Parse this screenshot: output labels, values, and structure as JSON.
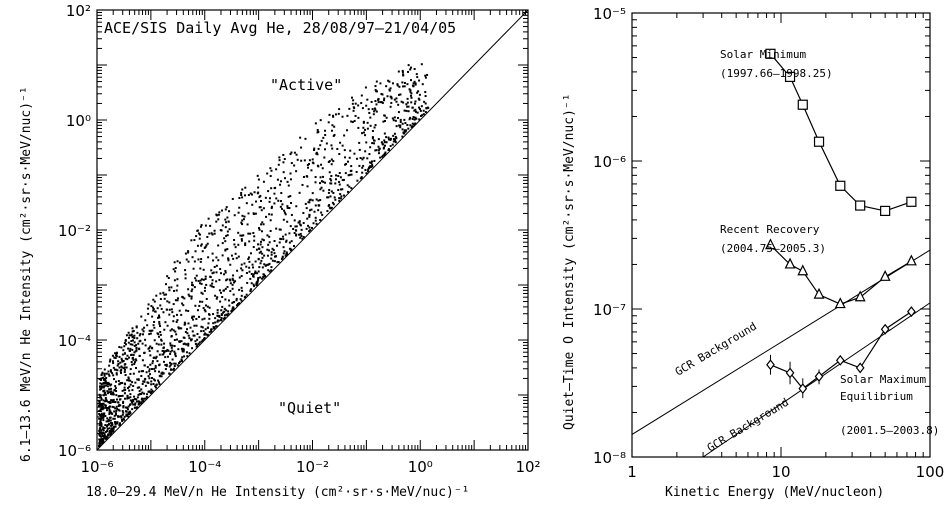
{
  "chart_data": [
    {
      "type": "scatter",
      "title": "ACE/SIS Daily Avg He, 28/08/97–21/04/05",
      "xlabel": "18.0–29.4 MeV/n He Intensity (cm²·sr·s·MeV/nuc)⁻¹",
      "ylabel": "6.1–13.6 MeV/n He Intensity (cm²·sr·s·MeV/nuc)⁻¹",
      "xscale": "log",
      "yscale": "log",
      "xlim": [
        1e-06,
        100
      ],
      "ylim": [
        1e-06,
        100
      ],
      "xticks": [
        {
          "value": 1e-06,
          "label": "10⁻⁶"
        },
        {
          "value": 0.0001,
          "label": "10⁻⁴"
        },
        {
          "value": 0.01,
          "label": "10⁻²"
        },
        {
          "value": 1,
          "label": "10⁰"
        },
        {
          "value": 100,
          "label": "10²"
        }
      ],
      "yticks": [
        {
          "value": 1e-06,
          "label": "10⁻⁶"
        },
        {
          "value": 0.0001,
          "label": "10⁻⁴"
        },
        {
          "value": 0.01,
          "label": "10⁻²"
        },
        {
          "value": 1,
          "label": "10⁰"
        },
        {
          "value": 100,
          "label": "10²"
        }
      ],
      "reference_line": "y = x",
      "annotations": [
        {
          "text": "\"Active\"",
          "x": 0.008,
          "y": 5
        },
        {
          "text": "\"Quiet\"",
          "x": 0.008,
          "y": 1.5e-05
        }
      ],
      "point_cloud": {
        "n_points": 2000,
        "upper_bound_points": [
          [
            1e-06,
            2e-05
          ],
          [
            5e-06,
            0.0002
          ],
          [
            3e-05,
            0.003
          ],
          [
            0.0001,
            0.015
          ],
          [
            0.001,
            0.1
          ],
          [
            0.01,
            0.8
          ],
          [
            0.1,
            4
          ],
          [
            0.5,
            10
          ],
          [
            1.2,
            12
          ]
        ],
        "lower_bound": "y ≈ x",
        "note": "daily averages; points lie above the y = x line"
      },
      "grid": false,
      "legend": "none"
    },
    {
      "type": "line",
      "title": "",
      "xlabel": "Kinetic Energy (MeV/nucleon)",
      "ylabel": "Quiet–Time O Intensity (cm²·sr·s·MeV/nuc)⁻¹",
      "xscale": "log",
      "yscale": "log",
      "xlim": [
        1,
        100
      ],
      "ylim": [
        1e-08,
        1e-05
      ],
      "xticks": [
        {
          "value": 1,
          "label": "1"
        },
        {
          "value": 10,
          "label": "10"
        },
        {
          "value": 100,
          "label": "100"
        }
      ],
      "yticks": [
        {
          "value": 1e-08,
          "label": "10⁻⁸"
        },
        {
          "value": 1e-07,
          "label": "10⁻⁷"
        },
        {
          "value": 1e-06,
          "label": "10⁻⁶"
        },
        {
          "value": 1e-05,
          "label": "10⁻⁵"
        }
      ],
      "series": [
        {
          "name": "Solar Minimum (1997.66–1998.25)",
          "marker": "square",
          "x": [
            8.5,
            11.5,
            14.0,
            18.0,
            25.0,
            34.0,
            50.0,
            75.0
          ],
          "y": [
            5.3e-06,
            3.7e-06,
            2.4e-06,
            1.35e-06,
            6.8e-07,
            5e-07,
            4.6e-07,
            5.3e-07
          ]
        },
        {
          "name": "Recent Recovery (2004.75–2005.3)",
          "marker": "triangle",
          "x": [
            8.5,
            11.5,
            14.0,
            18.0,
            25.0,
            34.0,
            50.0,
            75.0
          ],
          "y": [
            2.7e-07,
            2e-07,
            1.8e-07,
            1.25e-07,
            1.08e-07,
            1.2e-07,
            1.65e-07,
            2.1e-07
          ]
        },
        {
          "name": "Solar Maximum Equilibrium (2001.5–2003.8)",
          "marker": "diamond",
          "x": [
            8.5,
            11.5,
            14.0,
            18.0,
            25.0,
            34.0,
            50.0,
            75.0
          ],
          "y": [
            4.2e-08,
            3.7e-08,
            2.9e-08,
            3.5e-08,
            4.5e-08,
            4e-08,
            7.3e-08,
            9.6e-08
          ],
          "yerr_low": [
            3.6e-08,
            3.1e-08,
            2.5e-08,
            3.1e-08,
            4.2e-08,
            3.7e-08,
            7e-08,
            9.3e-08
          ],
          "yerr_high": [
            4.9e-08,
            4.4e-08,
            3.4e-08,
            3.9e-08,
            4.8e-08,
            4.3e-08,
            7.6e-08,
            9.9e-08
          ]
        }
      ],
      "reference_lines": [
        {
          "label": "GCR Background",
          "x": [
            1,
            100
          ],
          "y": [
            1.42e-08,
            2.5e-07
          ]
        },
        {
          "label": "GCR Background",
          "x": [
            3.0,
            100
          ],
          "y": [
            1e-08,
            1.1e-07
          ]
        }
      ],
      "labels": {
        "solar_min": [
          "Solar Minimum",
          "(1997.66–1998.25)"
        ],
        "recovery": [
          "Recent Recovery",
          "(2004.75–2005.3)"
        ],
        "solar_max": [
          "Solar Maximum",
          "Equilibrium",
          "(2001.5–2003.8)"
        ],
        "gcr": "GCR Background"
      },
      "grid": false,
      "legend": "none"
    }
  ]
}
